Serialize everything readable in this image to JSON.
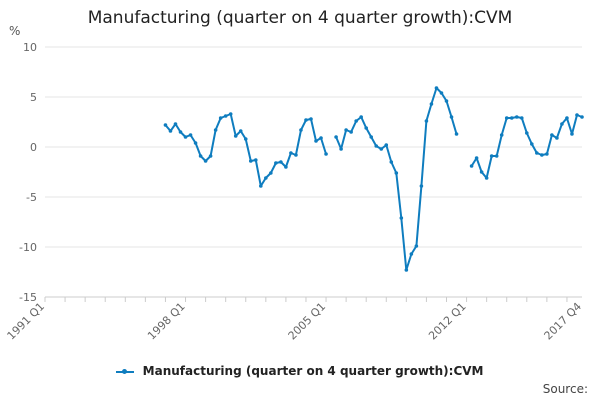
{
  "chart_data": {
    "type": "line",
    "title": "Manufacturing (quarter on 4 quarter growth):CVM",
    "y_unit": "%",
    "ylim": [
      -15,
      10
    ],
    "yticks": [
      10,
      5,
      0,
      -5,
      -10,
      -15
    ],
    "x_range_index": [
      0,
      104
    ],
    "x_tick_labels": [
      {
        "label": "1991 Q1",
        "index": 0
      },
      {
        "label": "1998 Q1",
        "index": 28
      },
      {
        "label": "2005 Q1",
        "index": 56
      },
      {
        "label": "2012 Q1",
        "index": 84
      },
      {
        "label": "2017 Q4",
        "index": 107
      }
    ],
    "series": [
      {
        "name": "Manufacturing (quarter on 4 quarter growth):CVM",
        "color": "#0f7dbf",
        "segments": [
          {
            "start_index": 24,
            "values": [
              2.2,
              1.6,
              2.3,
              1.5,
              1.0,
              1.2,
              0.4,
              -0.9,
              -1.4,
              -0.9,
              1.7,
              2.9,
              3.1,
              3.3,
              1.1,
              1.6,
              0.8,
              -1.4,
              -1.3,
              -3.9,
              -3.1,
              -2.6,
              -1.6,
              -1.5,
              -2.0,
              -0.6,
              -0.8,
              1.7,
              2.7,
              2.8,
              0.6,
              0.9,
              -0.7
            ]
          },
          {
            "start_index": 58,
            "values": [
              1.0,
              -0.2,
              1.7,
              1.5,
              2.6,
              3.0,
              1.9,
              1.0,
              0.1,
              -0.2,
              0.2,
              -1.5,
              -2.6,
              -7.1,
              -12.3,
              -10.7,
              -9.9,
              -3.9,
              2.6,
              4.3,
              5.9,
              5.4,
              4.6,
              3.0,
              1.3
            ]
          },
          {
            "start_index": 85,
            "values": [
              -1.9,
              -1.1,
              -2.5,
              -3.1,
              -0.9,
              -0.9,
              1.2,
              2.9,
              2.9,
              3.0,
              2.9,
              1.4,
              0.3,
              -0.6,
              -0.8,
              -0.7,
              1.2,
              0.9,
              2.3,
              2.9,
              1.3,
              3.2,
              3.0
            ]
          }
        ]
      }
    ],
    "legend": {
      "label": "Manufacturing (quarter on 4 quarter growth):CVM",
      "placement": "bottom"
    },
    "source": "Source:"
  }
}
